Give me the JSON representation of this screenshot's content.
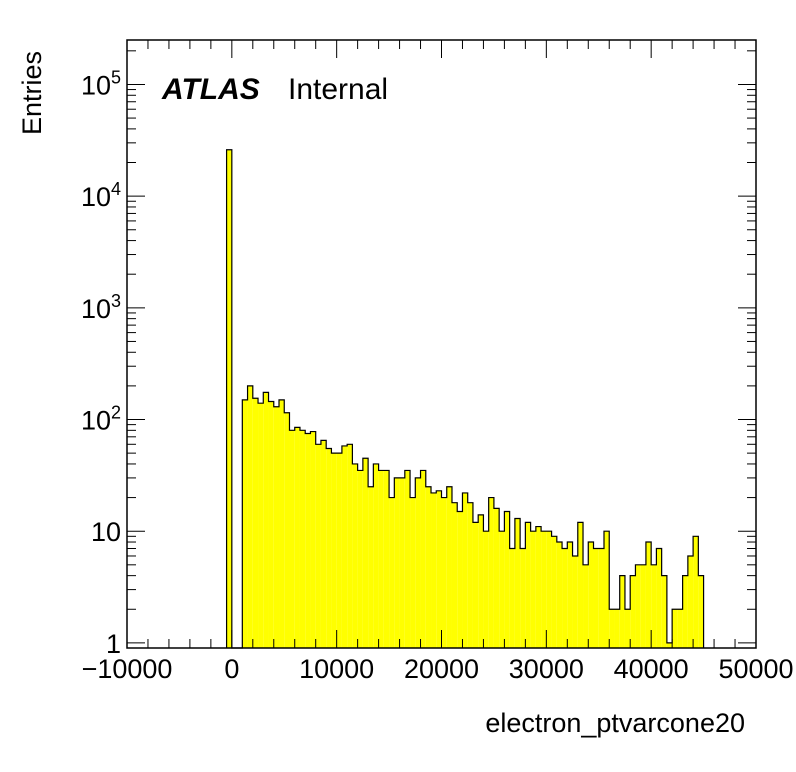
{
  "chart_data": {
    "type": "histogram",
    "title": "",
    "xlabel": "electron_ptvarcone20",
    "ylabel": "Entries",
    "annotation": {
      "bold": "ATLAS",
      "normal": "Internal"
    },
    "xlim": [
      -10000,
      50000
    ],
    "ylim": [
      0.9,
      250000
    ],
    "yscale": "log",
    "x_ticks": [
      -10000,
      0,
      10000,
      20000,
      30000,
      40000,
      50000
    ],
    "x_tick_labels": [
      "−10000",
      "0",
      "10000",
      "20000",
      "30000",
      "40000",
      "50000"
    ],
    "y_ticks": [
      {
        "value": 1,
        "base": "1",
        "exp": ""
      },
      {
        "value": 10,
        "base": "10",
        "exp": ""
      },
      {
        "value": 100,
        "base": "10",
        "exp": "2"
      },
      {
        "value": 1000,
        "base": "10",
        "exp": "3"
      },
      {
        "value": 10000,
        "base": "10",
        "exp": "4"
      },
      {
        "value": 100000,
        "base": "10",
        "exp": "5"
      }
    ],
    "bin_width": 500,
    "bin_start": -500,
    "values": [
      26000,
      0,
      0,
      150,
      200,
      155,
      140,
      175,
      145,
      130,
      150,
      115,
      80,
      85,
      80,
      75,
      78,
      60,
      65,
      55,
      50,
      50,
      58,
      60,
      40,
      35,
      45,
      25,
      40,
      35,
      35,
      20,
      30,
      30,
      35,
      20,
      30,
      35,
      25,
      22,
      23,
      20,
      25,
      18,
      15,
      22,
      18,
      12,
      14,
      10,
      20,
      16,
      10,
      15,
      7,
      13,
      7,
      12,
      10,
      11,
      10,
      10,
      9,
      8,
      7,
      8,
      6,
      12,
      5,
      8,
      7,
      7,
      10,
      2,
      2,
      4,
      2,
      4,
      5,
      5,
      8,
      5,
      7,
      4,
      1,
      2,
      2,
      4,
      6,
      9,
      4
    ],
    "fill_color": "#ffff00",
    "line_color": "#000000",
    "grid": false,
    "legend": "none"
  }
}
